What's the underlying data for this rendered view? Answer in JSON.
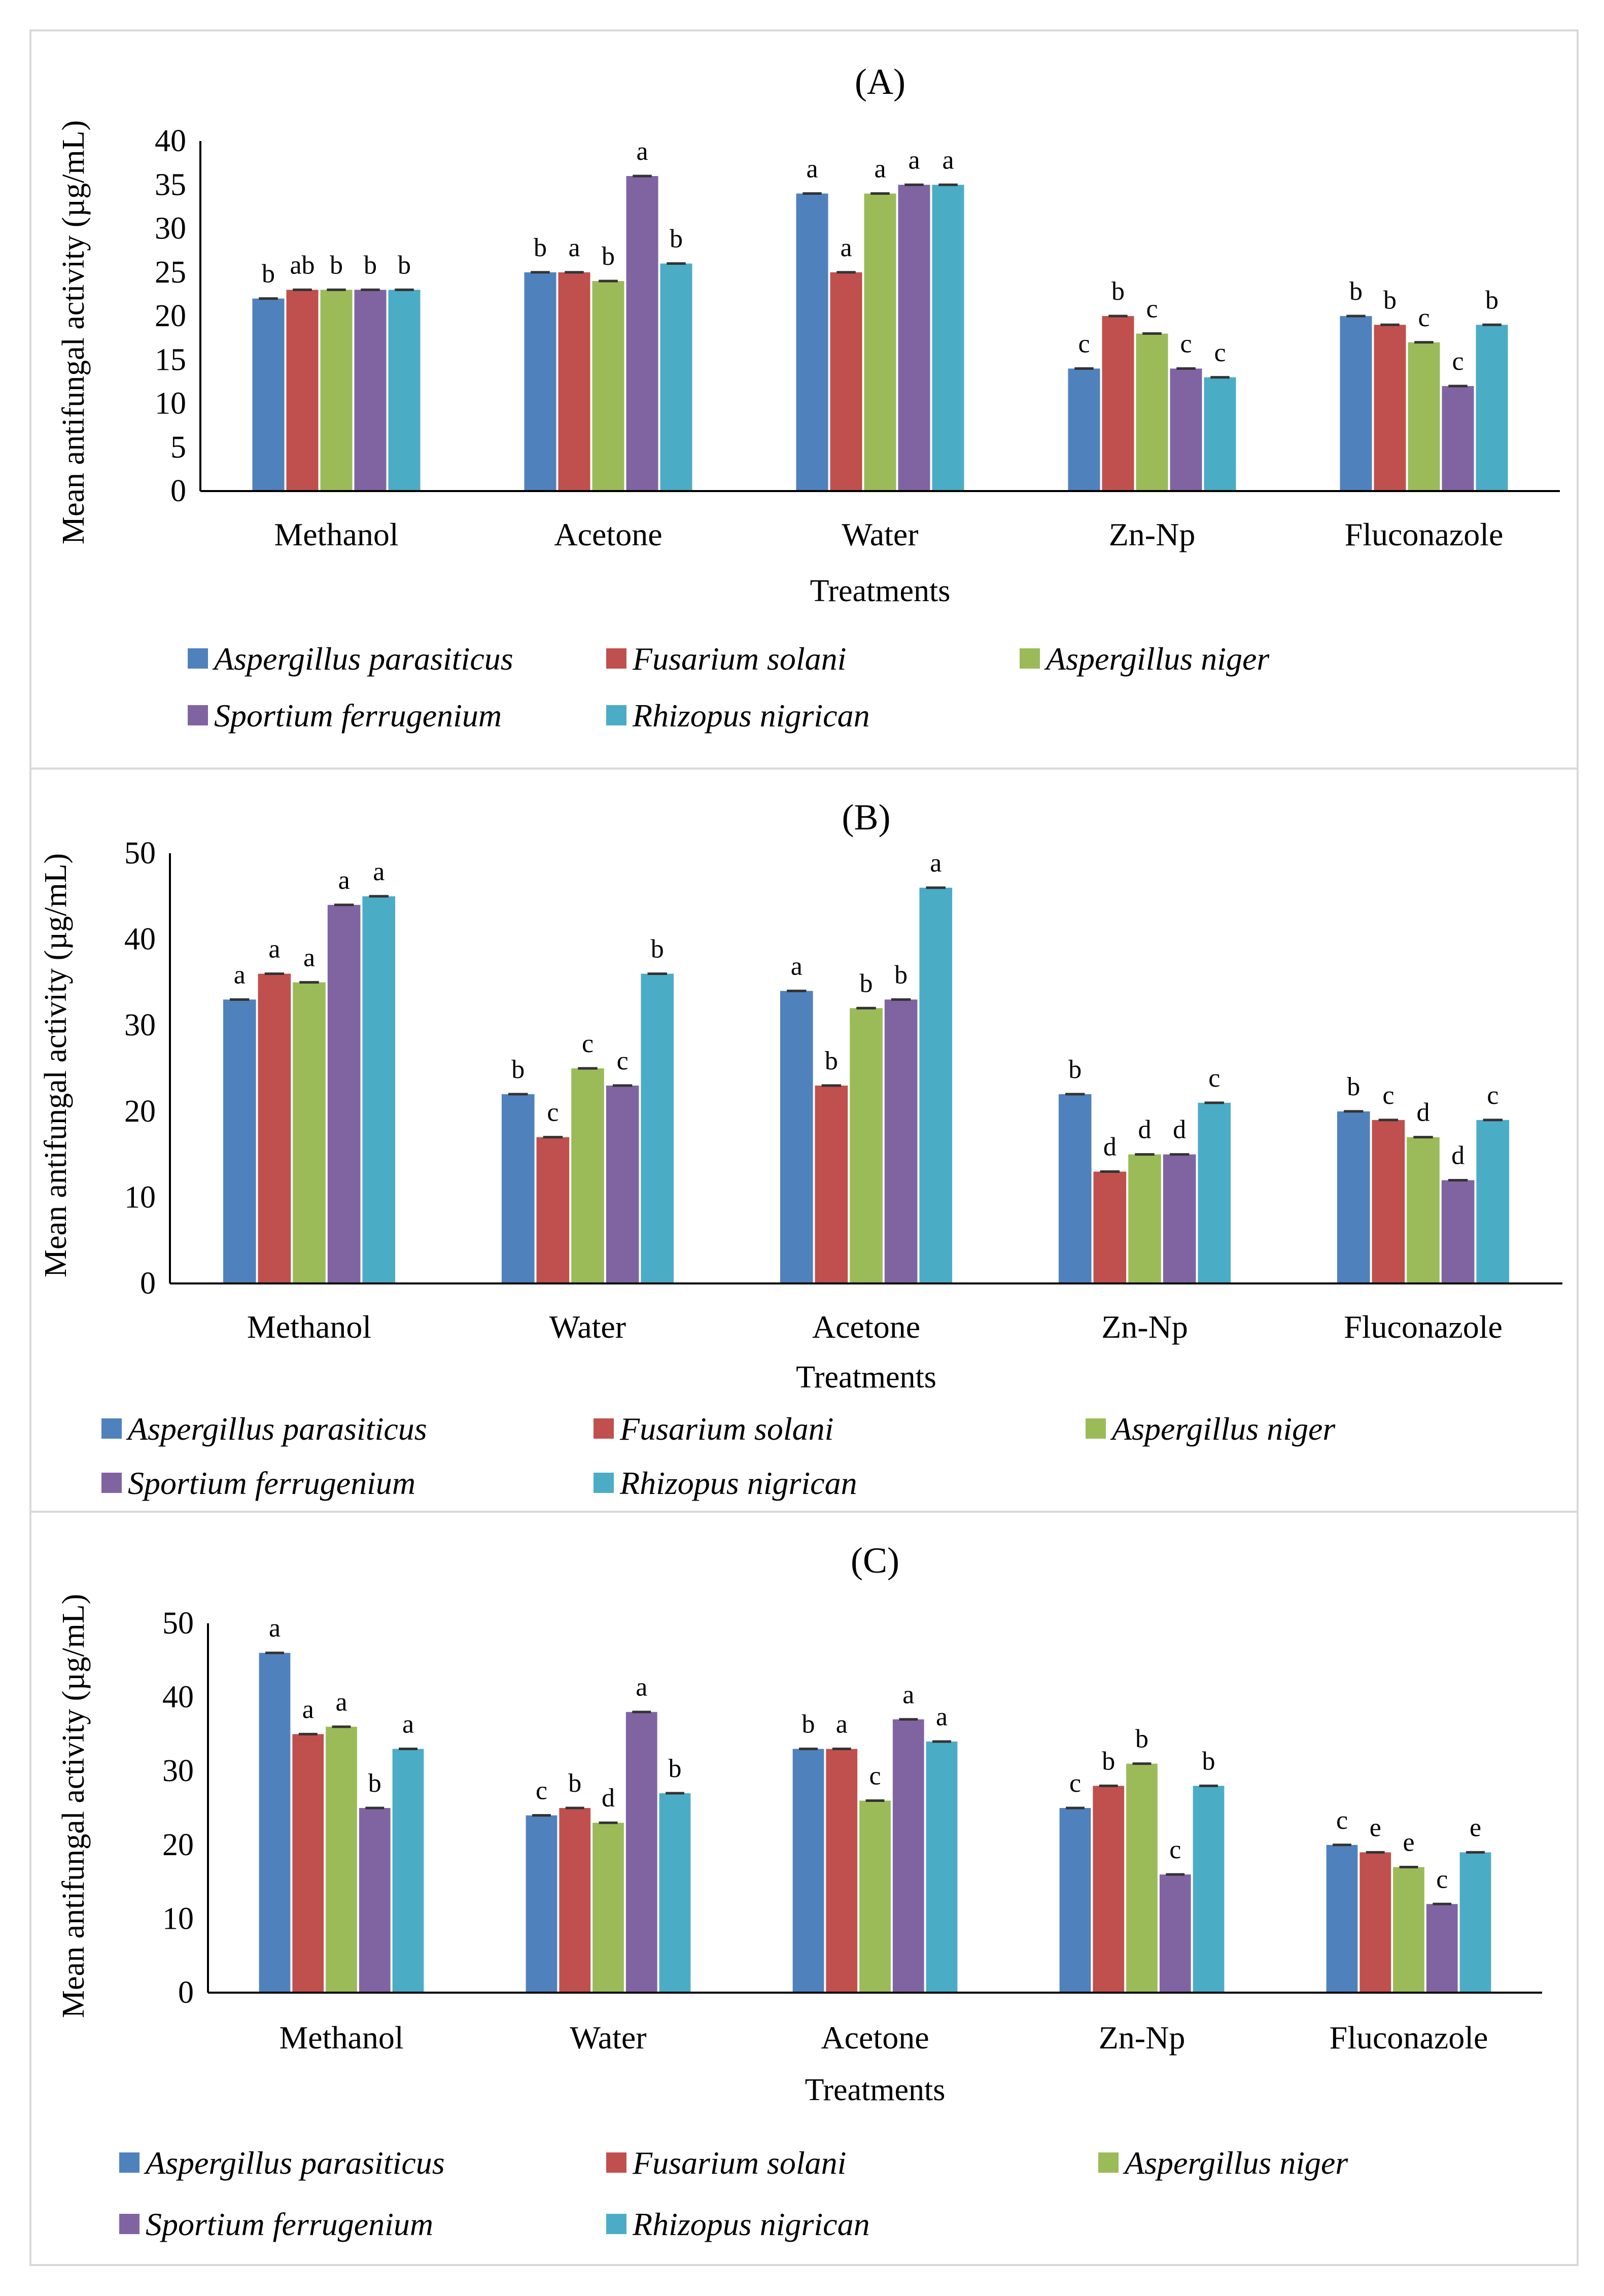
{
  "figure": {
    "series_names": [
      "Aspergillus parasiticus",
      "Fusarium solani",
      "Aspergillus niger",
      "Sportium ferrugenium",
      "Rhizopus nigrican"
    ],
    "series_colors": [
      "#4f81bd",
      "#c0504d",
      "#9bbb59",
      "#8064a2",
      "#4bacc6"
    ],
    "frame_color": "#d9d9d9"
  },
  "chart_data": [
    {
      "type": "bar",
      "title": "(A)",
      "xlabel": "Treatments",
      "ylabel": "Mean antifungal activity (µg/mL)",
      "ylim": [
        0,
        40
      ],
      "yticks": [
        0,
        5,
        10,
        15,
        20,
        25,
        30,
        35,
        40
      ],
      "categories": [
        "Methanol",
        "Acetone",
        "Water",
        "Zn-Np",
        "Fluconazole"
      ],
      "series": [
        {
          "name": "Aspergillus parasiticus",
          "values": [
            22,
            25,
            34,
            14,
            20
          ],
          "labels": [
            "b",
            "b",
            "a",
            "c",
            "b"
          ]
        },
        {
          "name": "Fusarium solani",
          "values": [
            23,
            25,
            25,
            20,
            19
          ],
          "labels": [
            "ab",
            "a",
            "a",
            "b",
            "b"
          ]
        },
        {
          "name": "Aspergillus niger",
          "values": [
            23,
            24,
            34,
            18,
            17
          ],
          "labels": [
            "b",
            "b",
            "a",
            "c",
            "c"
          ]
        },
        {
          "name": "Sportium ferrugenium",
          "values": [
            23,
            36,
            35,
            14,
            12
          ],
          "labels": [
            "b",
            "a",
            "a",
            "c",
            "c"
          ]
        },
        {
          "name": "Rhizopus nigrican",
          "values": [
            23,
            26,
            35,
            13,
            19
          ],
          "labels": [
            "b",
            "b",
            "a",
            "c",
            "b"
          ]
        }
      ],
      "legend": "bottom"
    },
    {
      "type": "bar",
      "title": "(B)",
      "xlabel": "Treatments",
      "ylabel": "Mean antifungal activity (µg/mL)",
      "ylim": [
        0,
        50
      ],
      "yticks": [
        0,
        10,
        20,
        30,
        40,
        50
      ],
      "categories": [
        "Methanol",
        "Water",
        "Acetone",
        "Zn-Np",
        "Fluconazole"
      ],
      "series": [
        {
          "name": "Aspergillus parasiticus",
          "values": [
            33,
            22,
            34,
            22,
            20
          ],
          "labels": [
            "a",
            "b",
            "a",
            "b",
            "b"
          ]
        },
        {
          "name": "Fusarium solani",
          "values": [
            36,
            17,
            23,
            13,
            19
          ],
          "labels": [
            "a",
            "c",
            "b",
            "d",
            "c"
          ]
        },
        {
          "name": "Aspergillus niger",
          "values": [
            35,
            25,
            32,
            15,
            17
          ],
          "labels": [
            "a",
            "c",
            "b",
            "d",
            "d"
          ]
        },
        {
          "name": "Sportium ferrugenium",
          "values": [
            44,
            23,
            33,
            15,
            12
          ],
          "labels": [
            "a",
            "c",
            "b",
            "d",
            "d"
          ]
        },
        {
          "name": "Rhizopus nigrican",
          "values": [
            45,
            36,
            46,
            21,
            19
          ],
          "labels": [
            "a",
            "b",
            "a",
            "c",
            "c"
          ]
        }
      ],
      "legend": "bottom"
    },
    {
      "type": "bar",
      "title": "(C)",
      "xlabel": "Treatments",
      "ylabel": "Mean antifungal activity (µg/mL)",
      "ylim": [
        0,
        50
      ],
      "yticks": [
        0,
        10,
        20,
        30,
        40,
        50
      ],
      "categories": [
        "Methanol",
        "Water",
        "Acetone",
        "Zn-Np",
        "Fluconazole"
      ],
      "series": [
        {
          "name": "Aspergillus parasiticus",
          "values": [
            46,
            24,
            33,
            25,
            20
          ],
          "labels": [
            "a",
            "c",
            "b",
            "c",
            "c"
          ]
        },
        {
          "name": "Fusarium solani",
          "values": [
            35,
            25,
            33,
            28,
            19
          ],
          "labels": [
            "a",
            "b",
            "a",
            "b",
            "e"
          ]
        },
        {
          "name": "Aspergillus niger",
          "values": [
            36,
            23,
            26,
            31,
            17
          ],
          "labels": [
            "a",
            "d",
            "c",
            "b",
            "e"
          ]
        },
        {
          "name": "Sportium ferrugenium",
          "values": [
            25,
            38,
            37,
            16,
            12
          ],
          "labels": [
            "b",
            "a",
            "a",
            "c",
            "c"
          ]
        },
        {
          "name": "Rhizopus nigrican",
          "values": [
            33,
            27,
            34,
            28,
            19
          ],
          "labels": [
            "a",
            "b",
            "a",
            "b",
            "e"
          ]
        }
      ],
      "legend": "bottom"
    }
  ]
}
